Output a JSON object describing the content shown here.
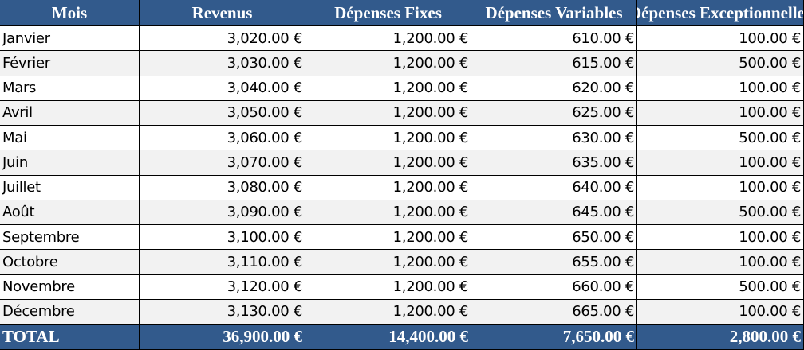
{
  "table": {
    "header": [
      "Mois",
      "Revenus",
      "Dépenses Fixes",
      "Dépenses Variables",
      "Dépenses Exceptionnelles"
    ],
    "rows": [
      [
        "Janvier",
        "3,020.00 €",
        "1,200.00 €",
        "610.00 €",
        "100.00 €"
      ],
      [
        "Février",
        "3,030.00 €",
        "1,200.00 €",
        "615.00 €",
        "500.00 €"
      ],
      [
        "Mars",
        "3,040.00 €",
        "1,200.00 €",
        "620.00 €",
        "100.00 €"
      ],
      [
        "Avril",
        "3,050.00 €",
        "1,200.00 €",
        "625.00 €",
        "100.00 €"
      ],
      [
        "Mai",
        "3,060.00 €",
        "1,200.00 €",
        "630.00 €",
        "500.00 €"
      ],
      [
        "Juin",
        "3,070.00 €",
        "1,200.00 €",
        "635.00 €",
        "100.00 €"
      ],
      [
        "Juillet",
        "3,080.00 €",
        "1,200.00 €",
        "640.00 €",
        "100.00 €"
      ],
      [
        "Août",
        "3,090.00 €",
        "1,200.00 €",
        "645.00 €",
        "500.00 €"
      ],
      [
        "Septembre",
        "3,100.00 €",
        "1,200.00 €",
        "650.00 €",
        "100.00 €"
      ],
      [
        "Octobre",
        "3,110.00 €",
        "1,200.00 €",
        "655.00 €",
        "100.00 €"
      ],
      [
        "Novembre",
        "3,120.00 €",
        "1,200.00 €",
        "660.00 €",
        "500.00 €"
      ],
      [
        "Décembre",
        "3,130.00 €",
        "1,200.00 €",
        "665.00 €",
        "100.00 €"
      ]
    ],
    "total": [
      "TOTAL",
      "36,900.00 €",
      "14,400.00 €",
      "7,650.00 €",
      "2,800.00 €"
    ]
  }
}
